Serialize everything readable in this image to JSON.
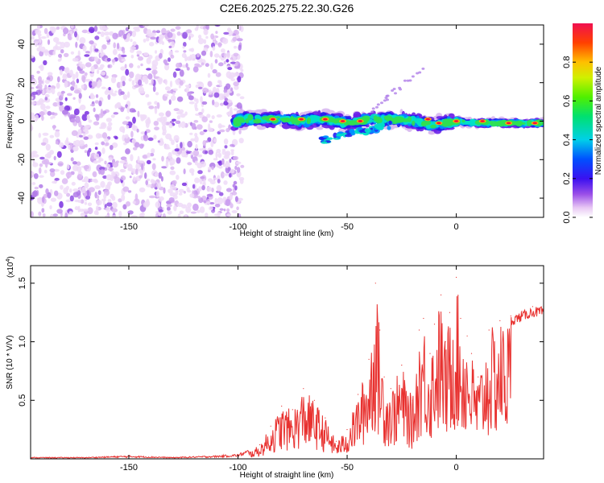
{
  "page": {
    "title": "C2E6.2025.275.22.30.G26"
  },
  "chart_data": [
    {
      "type": "heatmap",
      "title": "C2E6.2025.275.22.30.G26",
      "xlabel": "Height of straight line (km)",
      "ylabel": "Frequency (Hz)",
      "xlim": [
        -195,
        40
      ],
      "ylim": [
        -50,
        50
      ],
      "xticks": [
        -150,
        -100,
        -50,
        0
      ],
      "yticks": [
        -40,
        -20,
        0,
        20,
        40
      ],
      "xtick_labels": [
        "-150",
        "-100",
        "-50",
        "0"
      ],
      "ytick_labels": [
        "-40",
        "-20",
        "0",
        "20",
        "40"
      ],
      "colorbar": {
        "label": "Normalized spectral amplitude",
        "range": [
          0,
          1
        ],
        "ticks": [
          0.0,
          0.2,
          0.4,
          0.6,
          0.8
        ],
        "tick_labels": [
          "0.0",
          "0.2",
          "0.4",
          "0.6",
          "0.8"
        ]
      },
      "ridge": {
        "x": [
          -100,
          -90,
          -80,
          -70,
          -60,
          -50,
          -40,
          -30,
          -20,
          -10,
          0,
          10,
          20,
          30,
          40
        ],
        "y": [
          1,
          1,
          1,
          0,
          1,
          -1,
          1,
          1,
          0,
          -2,
          0,
          -1,
          -1,
          -1,
          -1
        ]
      }
    },
    {
      "type": "line",
      "xlabel": "Height of straight line (km)",
      "ylabel": "SNR (10 * V/V)",
      "y_multiplier_label": "(x10",
      "y_multiplier_exp": "4",
      "y_multiplier_close": ")",
      "xlim": [
        -195,
        40
      ],
      "ylim": [
        0,
        1.65
      ],
      "xticks": [
        -150,
        -100,
        -50,
        0
      ],
      "yticks": [
        0.5,
        1.0,
        1.5
      ],
      "xtick_labels": [
        "-150",
        "-100",
        "-50",
        "0"
      ],
      "ytick_labels": [
        "0.5",
        "1.0",
        "1.5"
      ],
      "color": "#e8312f",
      "series": [
        {
          "name": "SNR",
          "x": [
            -195,
            -170,
            -150,
            -130,
            -110,
            -100,
            -95,
            -90,
            -85,
            -80,
            -75,
            -70,
            -65,
            -60,
            -55,
            -50,
            -45,
            -40,
            -37,
            -35,
            -33,
            -30,
            -25,
            -20,
            -17,
            -15,
            -12,
            -10,
            -7,
            -5,
            -3,
            0,
            2,
            5,
            7,
            10,
            15,
            20,
            25,
            30,
            35,
            40
          ],
          "y": [
            0.01,
            0.01,
            0.02,
            0.01,
            0.02,
            0.03,
            0.06,
            0.12,
            0.28,
            0.45,
            0.42,
            0.6,
            0.5,
            0.35,
            0.15,
            0.25,
            0.55,
            0.85,
            1.5,
            1.1,
            0.7,
            0.6,
            0.8,
            0.5,
            1.1,
            1.2,
            0.9,
            1.15,
            1.4,
            1.0,
            1.25,
            1.55,
            1.2,
            1.05,
            0.9,
            0.7,
            1.1,
            1.18,
            1.22,
            1.26,
            1.3,
            1.3
          ]
        }
      ]
    }
  ]
}
